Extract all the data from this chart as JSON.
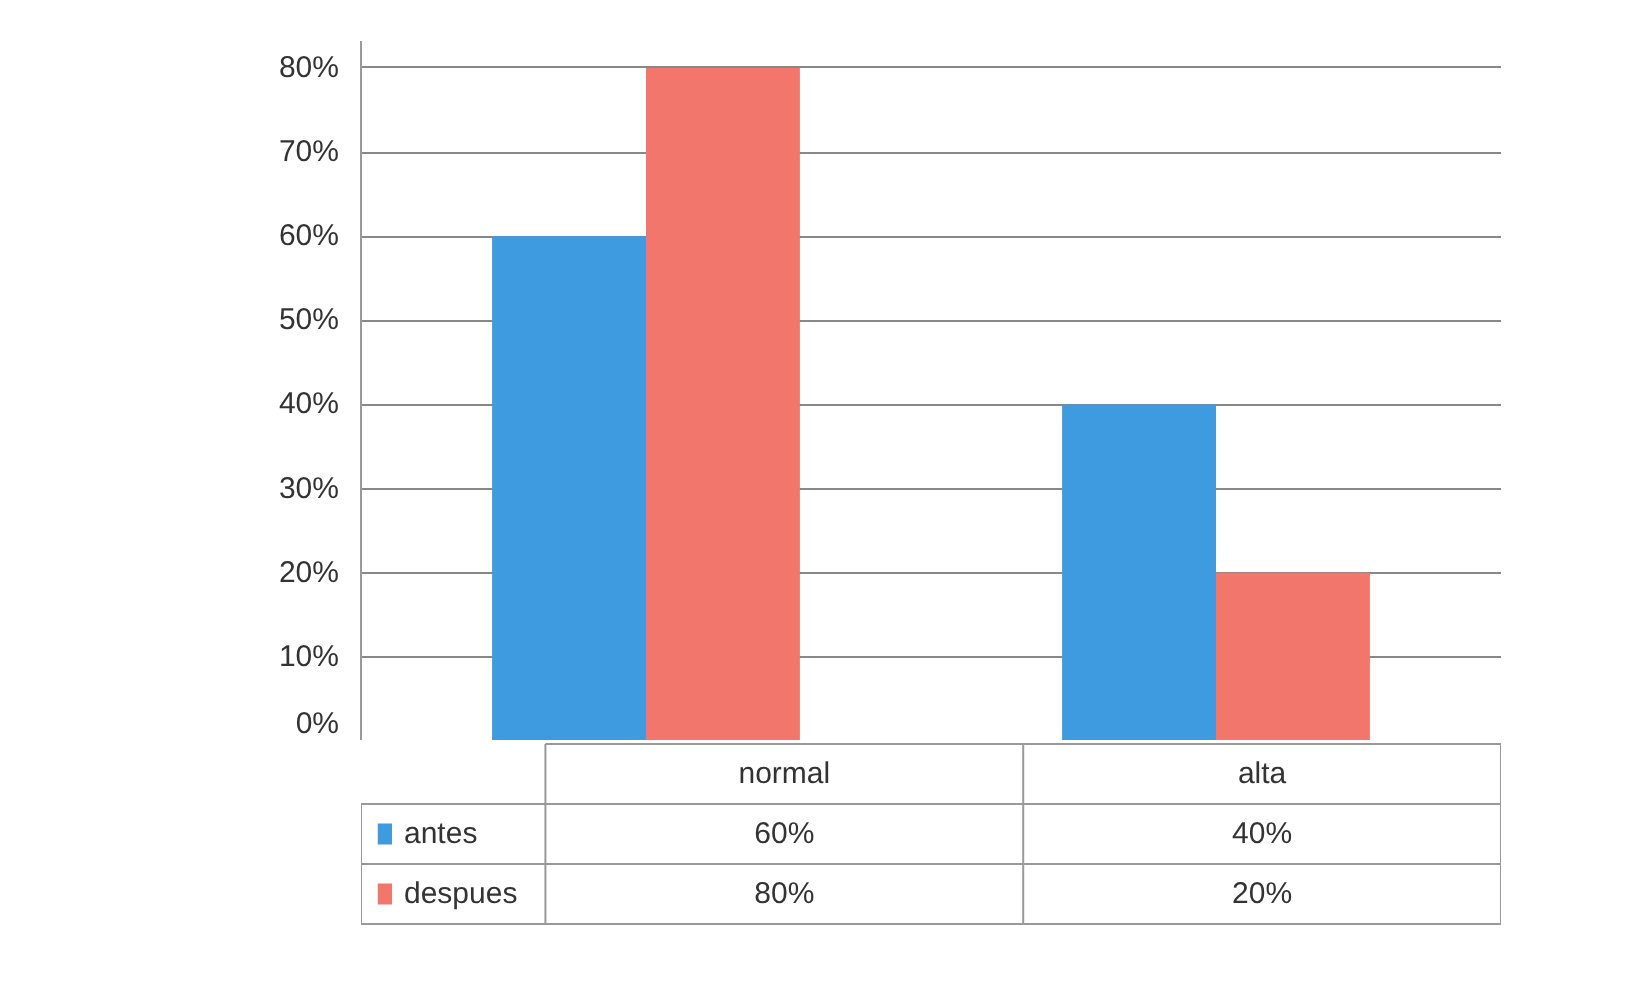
{
  "chart_data": {
    "type": "bar",
    "categories": [
      "normal",
      "alta"
    ],
    "series": [
      {
        "name": "antes",
        "color": "#3f9be0",
        "values": [
          60,
          40
        ],
        "value_labels": [
          "60%",
          "40%"
        ]
      },
      {
        "name": "despues",
        "color": "#f2766b",
        "values": [
          80,
          20
        ],
        "value_labels": [
          "80%",
          "20%"
        ]
      }
    ],
    "ylim": [
      0,
      80
    ],
    "yticks": [
      {
        "value": 0,
        "label": "0%"
      },
      {
        "value": 10,
        "label": "10%"
      },
      {
        "value": 20,
        "label": "20%"
      },
      {
        "value": 30,
        "label": "30%"
      },
      {
        "value": 40,
        "label": "40%"
      },
      {
        "value": 50,
        "label": "50%"
      },
      {
        "value": 60,
        "label": "60%"
      },
      {
        "value": 70,
        "label": "70%"
      },
      {
        "value": 80,
        "label": "80%"
      }
    ],
    "grid": "y",
    "legend": "bottom"
  }
}
